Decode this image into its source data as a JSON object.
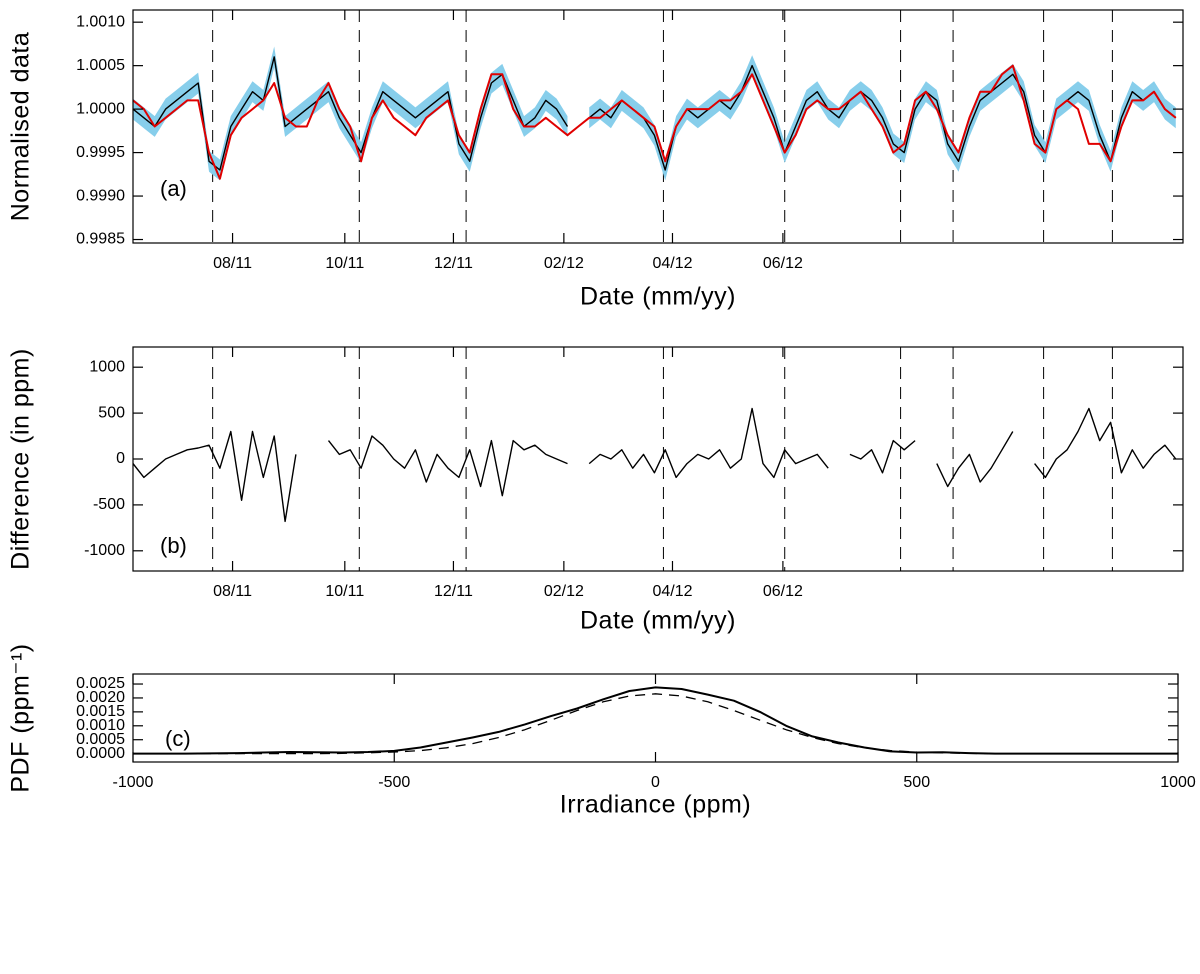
{
  "chart_data": [
    {
      "type": "line",
      "xlabel": "Date (mm/yy)",
      "ylabel": "Normalised data",
      "annotation": "(a)",
      "xlim": [
        0,
        580
      ],
      "xticks": [
        {
          "value": 55,
          "label": "08/11"
        },
        {
          "value": 117,
          "label": "10/11"
        },
        {
          "value": 177,
          "label": "12/11"
        },
        {
          "value": 238,
          "label": "02/12"
        },
        {
          "value": 298,
          "label": "04/12"
        },
        {
          "value": 359,
          "label": "06/12"
        }
      ],
      "ylim": [
        0.99846,
        1.00114
      ],
      "yticks": [
        {
          "value": 0.9985,
          "label": "0.9985"
        },
        {
          "value": 0.999,
          "label": "0.9990"
        },
        0.9995,
        {
          "value": 1.0,
          "label": "1.0000"
        },
        1.0005,
        {
          "value": 1.001,
          "label": "1.0010"
        }
      ],
      "vlines": [
        44,
        125,
        184,
        293,
        360,
        424,
        453,
        503,
        541
      ],
      "x": [
        0,
        6,
        12,
        18,
        24,
        30,
        36,
        42,
        48,
        54,
        60,
        66,
        72,
        78,
        84,
        90,
        96,
        102,
        108,
        114,
        120,
        126,
        132,
        138,
        144,
        150,
        156,
        162,
        168,
        174,
        180,
        186,
        192,
        198,
        204,
        210,
        216,
        222,
        228,
        234,
        240,
        246,
        252,
        258,
        264,
        270,
        276,
        282,
        288,
        294,
        300,
        306,
        312,
        318,
        324,
        330,
        336,
        342,
        348,
        354,
        360,
        366,
        372,
        378,
        384,
        390,
        396,
        402,
        408,
        414,
        420,
        426,
        432,
        438,
        444,
        450,
        456,
        462,
        468,
        474,
        480,
        486,
        492,
        498,
        504,
        510,
        516,
        522,
        528,
        534,
        540,
        546,
        552,
        558,
        564,
        570,
        576
      ],
      "series": [
        {
          "color": "#000000",
          "band_halfwidth": 0.00012,
          "band_color": "#87ceeb",
          "values": [
            1.0,
            0.9999,
            0.9998,
            1.0,
            1.0001,
            1.0002,
            1.0003,
            0.9994,
            0.9993,
            0.9998,
            1.0,
            1.0002,
            1.0001,
            1.0006,
            0.9998,
            0.9999,
            1.0,
            1.0001,
            1.0002,
            0.9999,
            0.9997,
            0.9995,
            0.9999,
            1.0002,
            1.0001,
            1.0,
            0.9999,
            1.0,
            1.0001,
            1.0002,
            0.9996,
            0.9994,
            0.9999,
            1.0003,
            1.0004,
            1.0001,
            0.9998,
            0.9999,
            1.0001,
            1.0,
            0.9998,
            null,
            0.9999,
            1.0,
            0.9999,
            1.0001,
            1.0,
            0.9999,
            0.9997,
            0.9993,
            0.9998,
            1.0,
            0.9999,
            1.0,
            1.0001,
            1.0,
            1.0002,
            1.0005,
            1.0002,
            0.9999,
            0.9995,
            0.9998,
            1.0001,
            1.0002,
            1.0,
            0.9999,
            1.0001,
            1.0002,
            1.0001,
            0.9999,
            0.9996,
            0.9995,
            1.0,
            1.0002,
            1.0001,
            0.9996,
            0.9994,
            0.9998,
            1.0001,
            1.0002,
            1.0003,
            1.0004,
            1.0002,
            0.9997,
            0.9995,
            1.0,
            1.0001,
            1.0002,
            1.0001,
            0.9997,
            0.9994,
            0.9999,
            1.0002,
            1.0001,
            1.0002,
            1.0,
            0.9999
          ]
        },
        {
          "color": "#e00000",
          "values": [
            1.0001,
            1.0,
            0.9998,
            0.9999,
            1.0,
            1.0001,
            1.0001,
            0.9995,
            0.9992,
            0.9997,
            0.9999,
            1.0,
            1.0001,
            1.0003,
            0.9999,
            0.9998,
            0.9998,
            1.0001,
            1.0003,
            1.0,
            0.9998,
            0.9994,
            0.9999,
            1.0001,
            0.9999,
            0.9998,
            0.9997,
            0.9999,
            1.0,
            1.0001,
            0.9997,
            0.9995,
            1.0,
            1.0004,
            1.0004,
            1.0,
            0.9998,
            0.9998,
            0.9999,
            0.9998,
            0.9997,
            0.9998,
            0.9999,
            0.9999,
            1.0,
            1.0001,
            1.0,
            0.9999,
            0.9998,
            0.9994,
            0.9998,
            1.0,
            1.0,
            1.0,
            1.0001,
            1.0001,
            1.0002,
            1.0004,
            1.0001,
            0.9998,
            0.9995,
            0.9997,
            1.0,
            1.0001,
            1.0,
            1.0,
            1.0001,
            1.0002,
            1.0,
            0.9998,
            0.9995,
            0.9996,
            1.0001,
            1.0002,
            1.0,
            0.9997,
            0.9995,
            0.9999,
            1.0002,
            1.0002,
            1.0004,
            1.0005,
            1.0001,
            0.9996,
            0.9995,
            1.0,
            1.0001,
            1.0,
            0.9996,
            0.9996,
            0.9994,
            0.9998,
            1.0001,
            1.0001,
            1.0002,
            1.0,
            0.9999
          ]
        }
      ]
    },
    {
      "type": "line",
      "xlabel": "Date (mm/yy)",
      "ylabel": "Difference (in ppm)",
      "annotation": "(b)",
      "xlim": [
        0,
        580
      ],
      "xticks": [
        {
          "value": 55,
          "label": "08/11"
        },
        {
          "value": 117,
          "label": "10/11"
        },
        {
          "value": 177,
          "label": "12/11"
        },
        {
          "value": 238,
          "label": "02/12"
        },
        {
          "value": 298,
          "label": "04/12"
        },
        {
          "value": 359,
          "label": "06/12"
        }
      ],
      "ylim": [
        -1220,
        1220
      ],
      "yticks": [
        -1000,
        -500,
        0,
        500,
        1000
      ],
      "vlines": [
        44,
        125,
        184,
        293,
        360,
        424,
        453,
        503,
        541
      ],
      "x": [
        0,
        6,
        12,
        18,
        24,
        30,
        36,
        42,
        48,
        54,
        60,
        66,
        72,
        78,
        84,
        90,
        96,
        102,
        108,
        114,
        120,
        126,
        132,
        138,
        144,
        150,
        156,
        162,
        168,
        174,
        180,
        186,
        192,
        198,
        204,
        210,
        216,
        222,
        228,
        234,
        240,
        246,
        252,
        258,
        264,
        270,
        276,
        282,
        288,
        294,
        300,
        306,
        312,
        318,
        324,
        330,
        336,
        342,
        348,
        354,
        360,
        366,
        372,
        378,
        384,
        390,
        396,
        402,
        408,
        414,
        420,
        426,
        432,
        438,
        444,
        450,
        456,
        462,
        468,
        474,
        480,
        486,
        492,
        498,
        504,
        510,
        516,
        522,
        528,
        534,
        540,
        546,
        552,
        558,
        564,
        570,
        576
      ],
      "series": [
        {
          "color": "#000000",
          "values": [
            -50,
            -200,
            -100,
            0,
            50,
            100,
            120,
            150,
            -100,
            300,
            -450,
            300,
            -200,
            250,
            -680,
            50,
            null,
            null,
            200,
            50,
            100,
            -100,
            250,
            150,
            0,
            -100,
            100,
            -250,
            50,
            -100,
            -200,
            100,
            -300,
            200,
            -400,
            200,
            100,
            150,
            50,
            0,
            -50,
            null,
            -50,
            50,
            0,
            100,
            -100,
            50,
            -150,
            100,
            -200,
            -50,
            50,
            0,
            100,
            -100,
            0,
            550,
            -50,
            -200,
            100,
            -50,
            0,
            50,
            -100,
            null,
            50,
            0,
            100,
            -150,
            200,
            100,
            200,
            null,
            -50,
            -300,
            -100,
            50,
            -250,
            -100,
            100,
            300,
            null,
            -50,
            -200,
            0,
            100,
            300,
            550,
            200,
            400,
            -150,
            100,
            -100,
            50,
            150,
            0
          ]
        }
      ]
    },
    {
      "type": "line",
      "xlabel": "Irradiance (ppm)",
      "ylabel": "PDF (ppm⁻¹)",
      "annotation": "(c)",
      "xlim": [
        -1000,
        1000
      ],
      "xticks": [
        -1000,
        -500,
        0,
        500,
        1000
      ],
      "ylim": [
        -0.0003,
        0.00286
      ],
      "yticks": [
        {
          "value": 0,
          "label": "0.0000"
        },
        0.0005,
        {
          "value": 0.001,
          "label": "0.0010"
        },
        0.0015,
        {
          "value": 0.002,
          "label": "0.0020"
        },
        0.0025
      ],
      "x": [
        -1000,
        -950,
        -900,
        -850,
        -800,
        -750,
        -700,
        -650,
        -600,
        -550,
        -500,
        -450,
        -400,
        -350,
        -300,
        -250,
        -200,
        -150,
        -100,
        -50,
        0,
        50,
        100,
        150,
        200,
        250,
        300,
        350,
        400,
        450,
        500,
        550,
        600,
        650,
        700,
        750,
        800,
        850,
        900,
        950,
        1000
      ],
      "series": [
        {
          "color": "#000000",
          "dashed": false,
          "values": [
            0,
            0,
            0,
            1e-05,
            2e-05,
            4e-05,
            6e-05,
            5e-05,
            4e-05,
            6e-05,
            0.0001,
            0.00022,
            0.0004,
            0.00058,
            0.00078,
            0.00105,
            0.00135,
            0.00162,
            0.00195,
            0.00225,
            0.00238,
            0.00232,
            0.00212,
            0.0019,
            0.0015,
            0.001,
            0.00062,
            0.0004,
            0.00022,
            8e-05,
            4e-05,
            5e-05,
            2e-05,
            0,
            0,
            0,
            0,
            0,
            0,
            0,
            0
          ]
        },
        {
          "color": "#000000",
          "dashed": true,
          "values": [
            0,
            0,
            0,
            0,
            0,
            0,
            0,
            0,
            1e-05,
            3e-05,
            6e-05,
            0.00011,
            0.00021,
            0.00036,
            0.00058,
            0.00086,
            0.0012,
            0.00155,
            0.00186,
            0.00207,
            0.00215,
            0.00207,
            0.00186,
            0.00155,
            0.0012,
            0.00086,
            0.00058,
            0.00036,
            0.00021,
            0.00011,
            6e-05,
            3e-05,
            1e-05,
            0,
            0,
            0,
            0,
            0,
            0,
            0,
            0
          ]
        }
      ]
    }
  ]
}
